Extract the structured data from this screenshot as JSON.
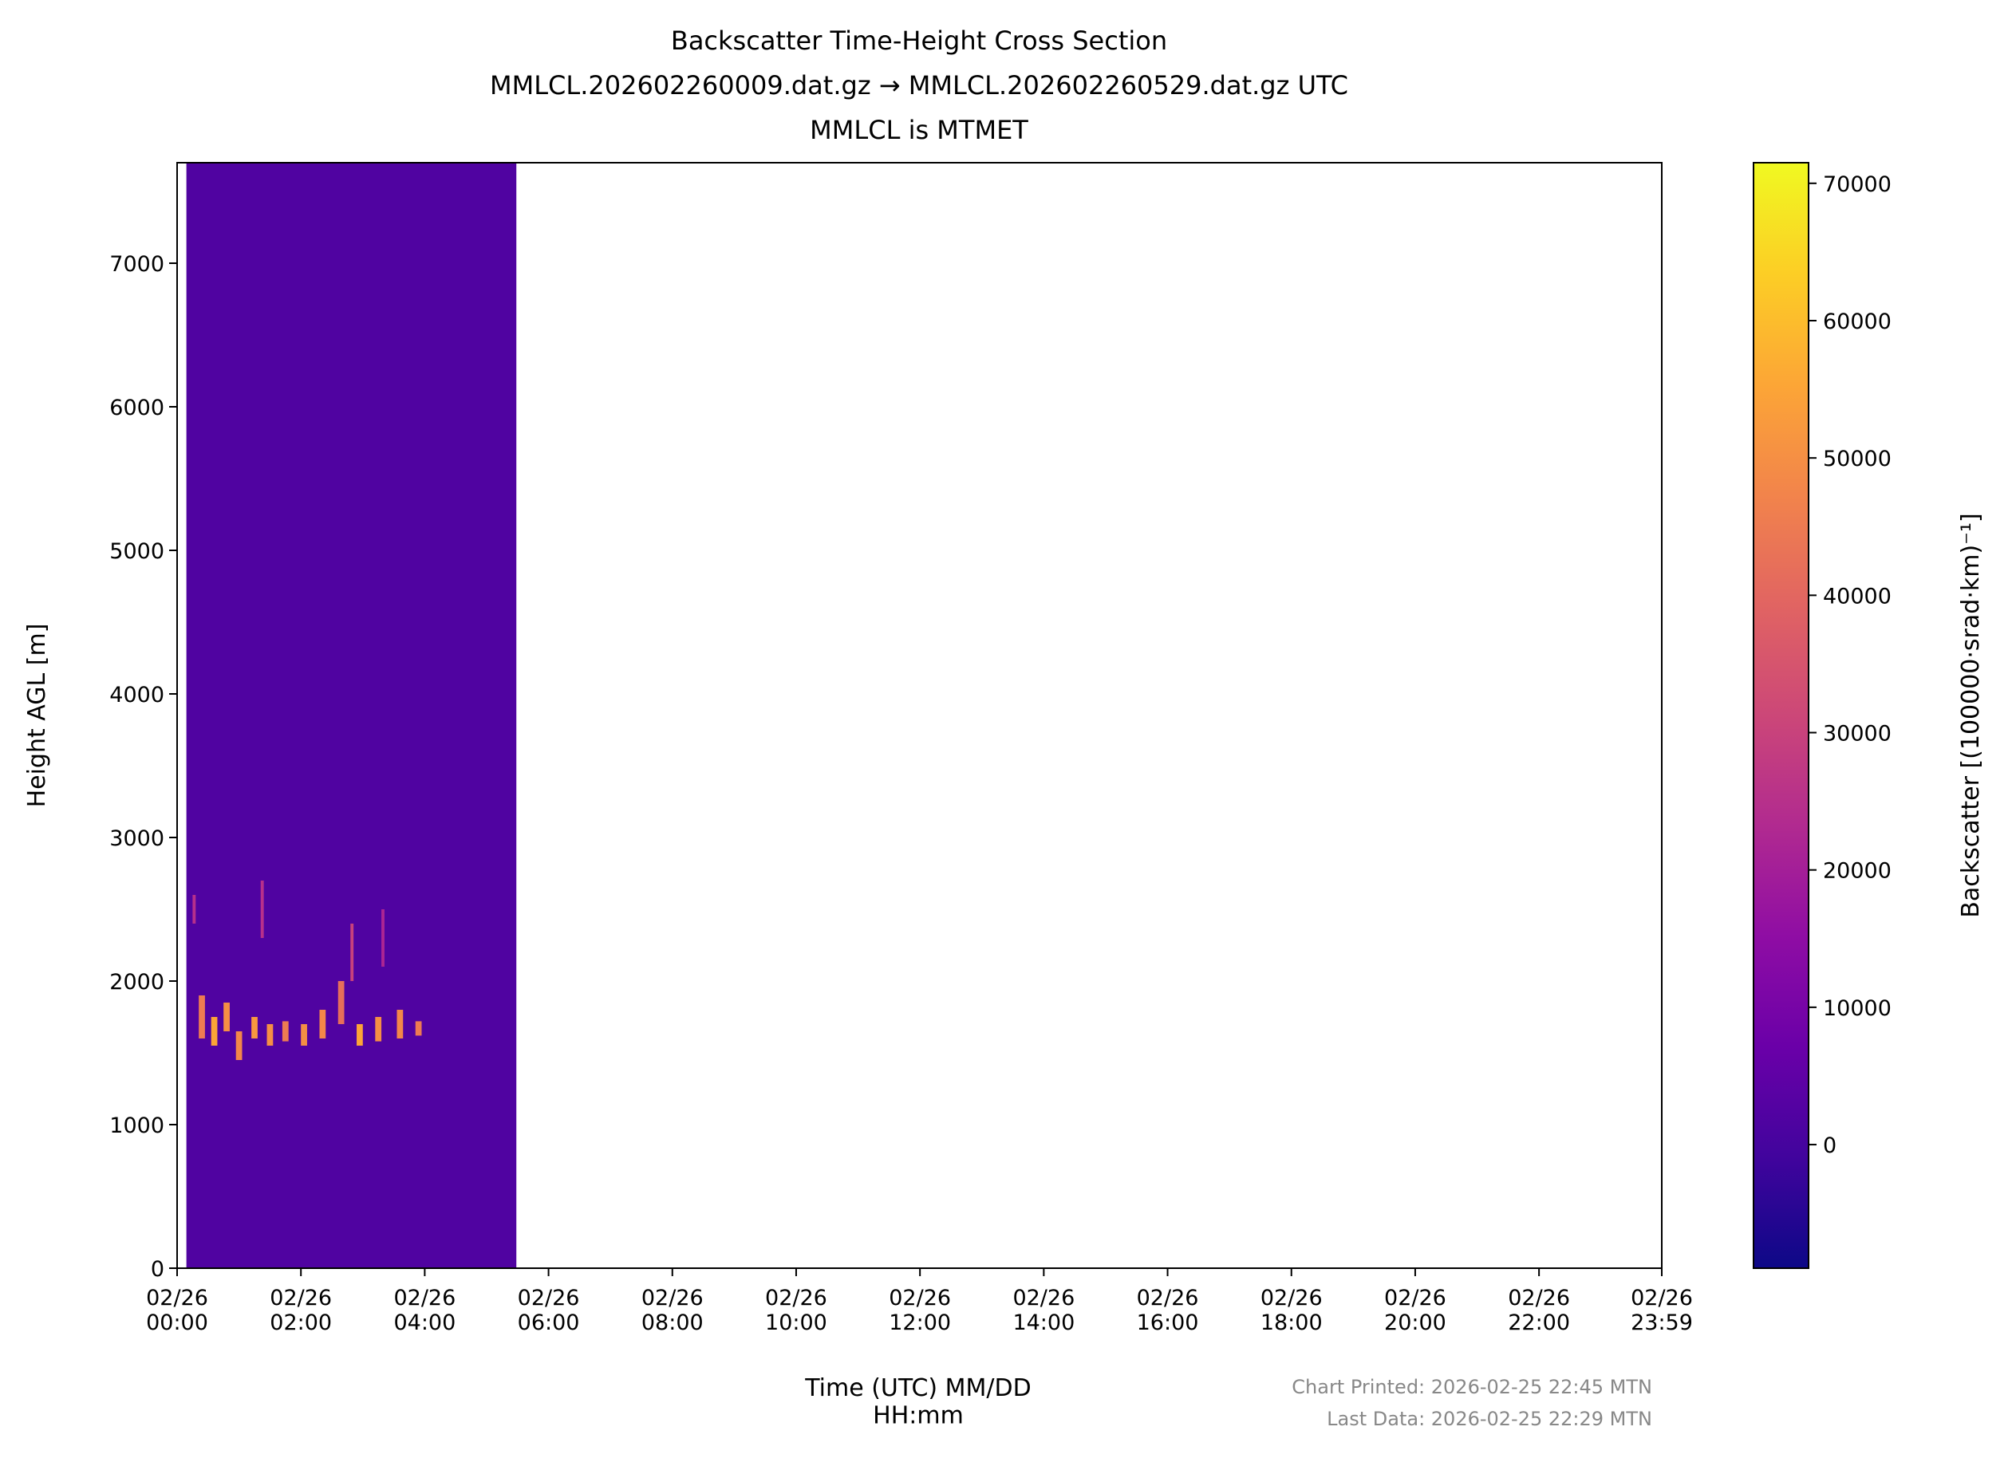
{
  "chart_data": {
    "type": "heatmap",
    "title": "Backscatter Time-Height Cross Section",
    "subtitle": [
      "MMLCL.202602260009.dat.gz → MMLCL.202602260529.dat.gz UTC",
      "MMLCL is MTMET"
    ],
    "x_label": "Time (UTC) MM/DD\nHH:mm",
    "y_label": "Height AGL [m]",
    "colorbar_label": "Backscatter [(100000·srad·km)⁻¹]",
    "colormap": "plasma",
    "footer": [
      "Chart Printed: 2026-02-25 22:45 MTN",
      "Last Data: 2026-02-25 22:29 MTN"
    ],
    "xlim": [
      0,
      23.983
    ],
    "xticks": [
      {
        "value": 0,
        "label": "02/26\n00:00"
      },
      {
        "value": 2,
        "label": "02/26\n02:00"
      },
      {
        "value": 4,
        "label": "02/26\n04:00"
      },
      {
        "value": 6,
        "label": "02/26\n06:00"
      },
      {
        "value": 8,
        "label": "02/26\n08:00"
      },
      {
        "value": 10,
        "label": "02/26\n10:00"
      },
      {
        "value": 12,
        "label": "02/26\n12:00"
      },
      {
        "value": 14,
        "label": "02/26\n14:00"
      },
      {
        "value": 16,
        "label": "02/26\n16:00"
      },
      {
        "value": 18,
        "label": "02/26\n18:00"
      },
      {
        "value": 20,
        "label": "02/26\n20:00"
      },
      {
        "value": 22,
        "label": "02/26\n22:00"
      },
      {
        "value": 23.983,
        "label": "02/26\n23:59"
      }
    ],
    "ylim": [
      0,
      7700
    ],
    "yticks": [
      0,
      1000,
      2000,
      3000,
      4000,
      5000,
      6000,
      7000
    ],
    "clim": [
      -9000,
      71500
    ],
    "cticks": [
      0,
      10000,
      20000,
      30000,
      40000,
      50000,
      60000,
      70000
    ],
    "cells": [
      {
        "x": [
          0.15,
          5.48
        ],
        "y": [
          0,
          7700
        ],
        "value": 2000
      },
      {
        "x": [
          0.35,
          0.45
        ],
        "y": [
          1600,
          1900
        ],
        "value": 45000
      },
      {
        "x": [
          0.55,
          0.65
        ],
        "y": [
          1550,
          1750
        ],
        "value": 55000
      },
      {
        "x": [
          0.75,
          0.85
        ],
        "y": [
          1650,
          1850
        ],
        "value": 50000
      },
      {
        "x": [
          0.95,
          1.05
        ],
        "y": [
          1450,
          1650
        ],
        "value": 48000
      },
      {
        "x": [
          1.2,
          1.3
        ],
        "y": [
          1600,
          1750
        ],
        "value": 52000
      },
      {
        "x": [
          1.45,
          1.55
        ],
        "y": [
          1550,
          1700
        ],
        "value": 50000
      },
      {
        "x": [
          1.7,
          1.8
        ],
        "y": [
          1580,
          1720
        ],
        "value": 45000
      },
      {
        "x": [
          2.0,
          2.1
        ],
        "y": [
          1550,
          1700
        ],
        "value": 50000
      },
      {
        "x": [
          2.3,
          2.4
        ],
        "y": [
          1600,
          1800
        ],
        "value": 48000
      },
      {
        "x": [
          2.6,
          2.7
        ],
        "y": [
          1700,
          2000
        ],
        "value": 42000
      },
      {
        "x": [
          2.9,
          3.0
        ],
        "y": [
          1550,
          1700
        ],
        "value": 55000
      },
      {
        "x": [
          3.2,
          3.3
        ],
        "y": [
          1580,
          1750
        ],
        "value": 50000
      },
      {
        "x": [
          3.55,
          3.65
        ],
        "y": [
          1600,
          1800
        ],
        "value": 48000
      },
      {
        "x": [
          3.85,
          3.95
        ],
        "y": [
          1620,
          1720
        ],
        "value": 45000
      },
      {
        "x": [
          1.35,
          1.4
        ],
        "y": [
          2300,
          2700
        ],
        "value": 25000
      },
      {
        "x": [
          2.8,
          2.85
        ],
        "y": [
          2000,
          2400
        ],
        "value": 30000
      },
      {
        "x": [
          0.25,
          0.3
        ],
        "y": [
          2400,
          2600
        ],
        "value": 25000
      },
      {
        "x": [
          3.3,
          3.35
        ],
        "y": [
          2100,
          2500
        ],
        "value": 22000
      }
    ]
  }
}
